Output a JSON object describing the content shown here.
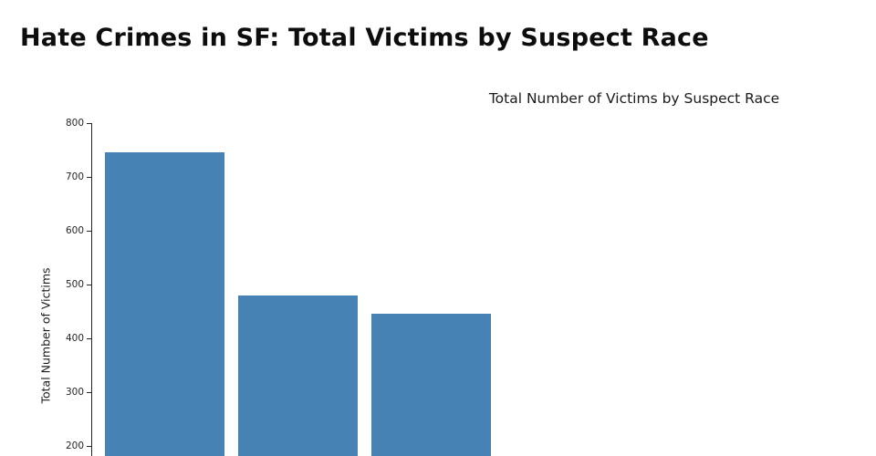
{
  "page": {
    "title": "Hate Crimes in SF: Total Victims by Suspect Race"
  },
  "chart_data": {
    "type": "bar",
    "title": "Total Number of Victims by Suspect Race",
    "xlabel": "",
    "ylabel": "Total Number of Victims",
    "categories": [
      "",
      "",
      ""
    ],
    "values": [
      745,
      480,
      445
    ],
    "ylim": [
      200,
      800
    ],
    "yticks": [
      200,
      300,
      400,
      500,
      600,
      700,
      800
    ],
    "bar_color": "#4682b4",
    "axis_color": "#262626",
    "grid": false,
    "legend": false
  }
}
